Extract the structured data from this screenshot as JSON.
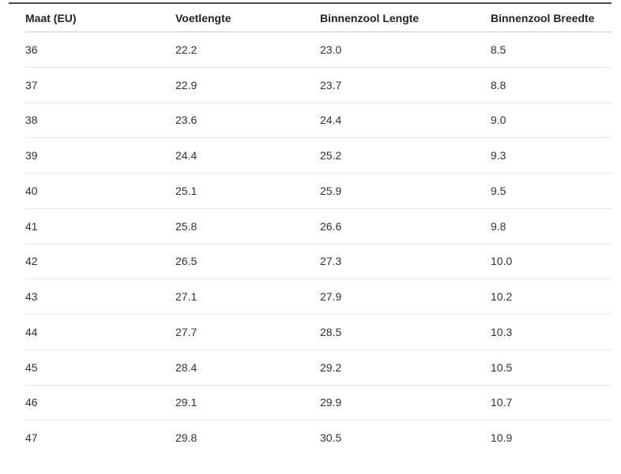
{
  "colors": {
    "background": "#ffffff",
    "top_rule": "#4a4a48",
    "header_separator": "#c8c6c4",
    "row_separator": "#e9e8e7",
    "header_text": "#242424",
    "cell_text": "#323130"
  },
  "chart_data": {
    "type": "table",
    "title": "",
    "columns": [
      {
        "label": "Maat (EU)"
      },
      {
        "label": "Voetlengte"
      },
      {
        "label": "Binnenzool Lengte"
      },
      {
        "label": "Binnenzool Breedte"
      }
    ],
    "rows": [
      [
        "36",
        "22.2",
        "23.0",
        "8.5"
      ],
      [
        "37",
        "22.9",
        "23.7",
        "8.8"
      ],
      [
        "38",
        "23.6",
        "24.4",
        "9.0"
      ],
      [
        "39",
        "24.4",
        "25.2",
        "9.3"
      ],
      [
        "40",
        "25.1",
        "25.9",
        "9.5"
      ],
      [
        "41",
        "25.8",
        "26.6",
        "9.8"
      ],
      [
        "42",
        "26.5",
        "27.3",
        "10.0"
      ],
      [
        "43",
        "27.1",
        "27.9",
        "10.2"
      ],
      [
        "44",
        "27.7",
        "28.5",
        "10.3"
      ],
      [
        "45",
        "28.4",
        "29.2",
        "10.5"
      ],
      [
        "46",
        "29.1",
        "29.9",
        "10.7"
      ],
      [
        "47",
        "29.8",
        "30.5",
        "10.9"
      ]
    ]
  }
}
